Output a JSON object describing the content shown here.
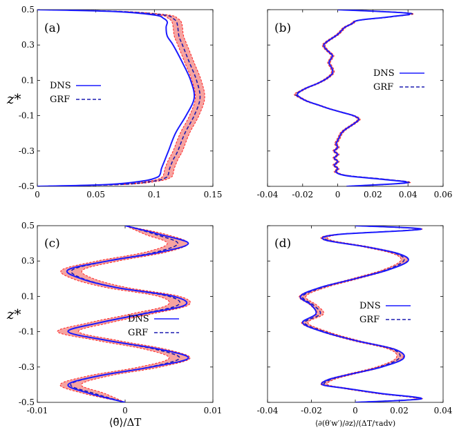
{
  "colors": {
    "dns": "#1a1aff",
    "grf": "#1a1ab0",
    "band": "#f7a3a0",
    "band_edge": "#ff2020",
    "axis": "#000000"
  },
  "legend": {
    "dns": "DNS",
    "grf": "GRF"
  },
  "labels": {
    "ylabel": "z*",
    "xlabel_c": "⟨θ̄⟩/ΔT",
    "xlabel_d": "⟨∂(θ′w′)/∂z⟩/(ΔT/τadv)"
  },
  "chart_data": [
    {
      "panel": "(a)",
      "type": "line",
      "xlim": [
        0,
        0.15
      ],
      "ylim": [
        -0.5,
        0.5
      ],
      "xticks": [
        "0",
        "0.05",
        "0.1",
        "0.15"
      ],
      "yticks": [
        "0.5",
        "0.3",
        "0.1",
        "-0.1",
        "-0.3",
        "-0.5"
      ],
      "z": [
        -0.5,
        -0.49,
        -0.47,
        -0.45,
        -0.43,
        -0.4,
        -0.35,
        -0.3,
        -0.2,
        -0.1,
        0,
        0.1,
        0.2,
        0.3,
        0.35,
        0.4,
        0.43,
        0.45,
        0.47,
        0.49,
        0.5
      ],
      "series": [
        {
          "name": "DNS",
          "values": [
            0,
            0.06,
            0.09,
            0.102,
            0.105,
            0.106,
            0.109,
            0.112,
            0.118,
            0.127,
            0.134,
            0.131,
            0.124,
            0.116,
            0.111,
            0.11,
            0.111,
            0.108,
            0.1,
            0.065,
            0
          ]
        },
        {
          "name": "GRF",
          "values": [
            0,
            0.07,
            0.1,
            0.11,
            0.112,
            0.113,
            0.116,
            0.12,
            0.126,
            0.134,
            0.139,
            0.136,
            0.13,
            0.124,
            0.121,
            0.12,
            0.119,
            0.116,
            0.108,
            0.07,
            0
          ]
        }
      ],
      "band_halfwidth": 0.004
    },
    {
      "panel": "(b)",
      "type": "line",
      "xlim": [
        -0.04,
        0.06
      ],
      "ylim": [
        -0.5,
        0.5
      ],
      "xticks": [
        "-0.04",
        "-0.02",
        "0",
        "0.02",
        "0.04",
        "0.06"
      ],
      "z": [
        -0.5,
        -0.48,
        -0.46,
        -0.44,
        -0.42,
        -0.4,
        -0.38,
        -0.36,
        -0.34,
        -0.32,
        -0.3,
        -0.28,
        -0.26,
        -0.24,
        -0.22,
        -0.2,
        -0.18,
        -0.16,
        -0.14,
        -0.12,
        -0.1,
        -0.08,
        -0.06,
        -0.04,
        -0.02,
        0,
        0.02,
        0.04,
        0.06,
        0.08,
        0.1,
        0.12,
        0.14,
        0.16,
        0.18,
        0.2,
        0.22,
        0.24,
        0.26,
        0.28,
        0.3,
        0.32,
        0.34,
        0.36,
        0.38,
        0.4,
        0.42,
        0.44,
        0.46,
        0.48,
        0.5
      ],
      "series": [
        {
          "name": "DNS",
          "values": [
            0.005,
            0.039,
            0.025,
            0.005,
            -0.001,
            0.0,
            -0.002,
            0.0,
            -0.002,
            0.0,
            -0.002,
            0.0,
            -0.001,
            0.0,
            0.001,
            0.002,
            0.004,
            0.007,
            0.01,
            0.012,
            0.009,
            0.002,
            -0.005,
            -0.011,
            -0.017,
            -0.021,
            -0.023,
            -0.021,
            -0.017,
            -0.012,
            -0.008,
            -0.005,
            -0.003,
            -0.003,
            -0.004,
            -0.005,
            -0.004,
            -0.003,
            -0.005,
            -0.007,
            -0.008,
            -0.006,
            -0.003,
            0.0,
            0.002,
            0.004,
            0.008,
            0.012,
            0.03,
            0.04,
            0.0
          ]
        },
        {
          "name": "GRF",
          "values": [
            0.005,
            0.04,
            0.027,
            0.006,
            -0.001,
            0.0,
            -0.002,
            0.0,
            -0.002,
            0.0,
            -0.002,
            0.0,
            -0.001,
            0.0,
            0.001,
            0.002,
            0.004,
            0.007,
            0.01,
            0.012,
            0.009,
            0.002,
            -0.005,
            -0.011,
            -0.017,
            -0.021,
            -0.024,
            -0.021,
            -0.017,
            -0.012,
            -0.008,
            -0.005,
            -0.003,
            -0.003,
            -0.004,
            -0.005,
            -0.004,
            -0.003,
            -0.005,
            -0.007,
            -0.008,
            -0.006,
            -0.003,
            0.0,
            0.002,
            0.004,
            0.008,
            0.012,
            0.031,
            0.041,
            0.0
          ]
        }
      ],
      "band_halfwidth": 0.0008
    },
    {
      "panel": "(c)",
      "type": "line",
      "xlim": [
        -0.01,
        0.01
      ],
      "ylim": [
        -0.5,
        0.5
      ],
      "xticks": [
        "-0.01",
        "0",
        "0.01"
      ],
      "yticks": [
        "0.5",
        "0.3",
        "0.1",
        "-0.1",
        "-0.3",
        "-0.5"
      ],
      "z": [
        -0.5,
        -0.45,
        -0.4,
        -0.35,
        -0.3,
        -0.25,
        -0.2,
        -0.15,
        -0.1,
        -0.05,
        0,
        0.05,
        0.1,
        0.15,
        0.2,
        0.25,
        0.3,
        0.35,
        0.4,
        0.45,
        0.5
      ],
      "series": [
        {
          "name": "DNS",
          "values": [
            0,
            -0.004,
            -0.0065,
            -0.003,
            0.003,
            0.0072,
            0.004,
            -0.002,
            -0.0065,
            -0.003,
            0.002,
            0.0068,
            0.0055,
            -0.001,
            -0.005,
            -0.0065,
            -0.002,
            0.004,
            0.0072,
            0.004,
            0
          ]
        },
        {
          "name": "GRF",
          "values": [
            0,
            -0.0035,
            -0.0062,
            -0.003,
            0.0028,
            0.0062,
            0.0035,
            -0.002,
            -0.0065,
            -0.003,
            0.0018,
            0.006,
            0.005,
            -0.001,
            -0.0048,
            -0.006,
            -0.002,
            0.0035,
            0.006,
            0.0035,
            0
          ]
        }
      ],
      "band_halfwidth": 0.0012
    },
    {
      "panel": "(d)",
      "type": "line",
      "xlim": [
        -0.04,
        0.04
      ],
      "ylim": [
        -0.5,
        0.5
      ],
      "xticks": [
        "-0.04",
        "-0.02",
        "0",
        "0.02",
        "0.04"
      ],
      "z": [
        -0.5,
        -0.48,
        -0.45,
        -0.42,
        -0.4,
        -0.37,
        -0.34,
        -0.3,
        -0.25,
        -0.2,
        -0.15,
        -0.1,
        -0.05,
        0,
        0.05,
        0.1,
        0.15,
        0.2,
        0.25,
        0.3,
        0.34,
        0.38,
        0.42,
        0.45,
        0.48,
        0.5
      ],
      "series": [
        {
          "name": "DNS",
          "values": [
            0,
            0.03,
            0.012,
            -0.005,
            -0.015,
            -0.012,
            -0.002,
            0.012,
            0.022,
            0.018,
            0.0,
            -0.015,
            -0.024,
            -0.018,
            -0.02,
            -0.025,
            -0.016,
            0.0,
            0.015,
            0.024,
            0.02,
            0.005,
            -0.014,
            -0.008,
            0.03,
            0.0
          ]
        },
        {
          "name": "GRF",
          "values": [
            0,
            0.029,
            0.011,
            -0.005,
            -0.014,
            -0.011,
            -0.002,
            0.011,
            0.02,
            0.017,
            0.0,
            -0.014,
            -0.023,
            -0.016,
            -0.019,
            -0.024,
            -0.015,
            0.0,
            0.014,
            0.022,
            0.019,
            0.005,
            -0.013,
            -0.008,
            0.029,
            0.0
          ]
        }
      ],
      "band_halfwidth": 0.0015
    }
  ]
}
